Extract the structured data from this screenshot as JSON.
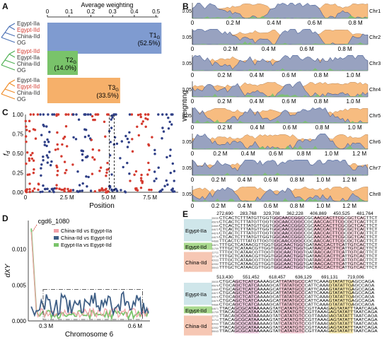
{
  "panels": {
    "a": "A",
    "b": "B",
    "c": "C",
    "d": "D",
    "e": "E"
  },
  "chart_data": [
    {
      "panel": "A",
      "type": "bar",
      "orientation": "horizontal",
      "title": "Average weighting",
      "ticks": [
        "0",
        "0.1",
        "0.2",
        "0.3",
        "0.4",
        "0.5"
      ],
      "xlim": [
        0,
        0.55
      ],
      "categories": [
        "T1",
        "T2",
        "T3"
      ],
      "values": [
        0.525,
        0.14,
        0.335
      ],
      "bar_labels": [
        [
          "T1",
          "G",
          "(52.5%)"
        ],
        [
          "T2",
          "G",
          "(14.0%)"
        ],
        [
          "T3",
          "G",
          "(33.5%)"
        ]
      ],
      "colors": [
        "#7f9bd0",
        "#79c36a",
        "#f6b06a"
      ],
      "trees": [
        {
          "taxa": [
            "Egypt-IIa",
            "Egypt-IId",
            "China-IId",
            "OG"
          ],
          "taxa_colors": [
            "#333333",
            "#d43a2f",
            "#333333",
            "#333333"
          ],
          "branch_color": "#4a6fb5"
        },
        {
          "taxa": [
            "Egypt-IId",
            "Egypt-IIa",
            "China-IId",
            "OG"
          ],
          "taxa_colors": [
            "#d43a2f",
            "#333333",
            "#333333",
            "#333333"
          ],
          "branch_color": "#4caf50"
        },
        {
          "taxa": [
            "Egypt-IIa",
            "Egypt-IId",
            "China-IId",
            "OG"
          ],
          "taxa_colors": [
            "#333333",
            "#d43a2f",
            "#333333",
            "#333333"
          ],
          "branch_color": "#f08a24"
        }
      ]
    },
    {
      "panel": "B",
      "type": "area",
      "ylabel": "Weighting",
      "ytick": "0.05",
      "series_colors": [
        "#7f9bd0",
        "#f6b06a",
        "#79c36a"
      ],
      "chromosomes": [
        {
          "name": "Chr1",
          "ticks": [
            "0",
            "0.2 M",
            "0.4 M",
            "0.6 M",
            "0.8 M"
          ],
          "length": 0.86
        },
        {
          "name": "Chr2",
          "ticks": [
            "0",
            "0.2 M",
            "0.4 M",
            "0.6 M",
            "0.8 M"
          ],
          "length": 0.92
        },
        {
          "name": "Chr3",
          "ticks": [
            "0",
            "0.2 M",
            "0.4 M",
            "0.6 M",
            "0.8 M",
            "1.0 M"
          ],
          "length": 1.09
        },
        {
          "name": "Chr4",
          "ticks": [
            "0",
            "0.2 M",
            "0.4 M",
            "0.6 M",
            "0.8 M",
            "1.0 M"
          ],
          "length": 1.09
        },
        {
          "name": "Chr5",
          "ticks": [
            "0",
            "0.2 M",
            "0.4 M",
            "0.6 M",
            "0.8 M",
            "1.0 M"
          ],
          "length": 1.08
        },
        {
          "name": "Chr6",
          "ticks": [
            "0",
            "0.2 M",
            "0.4 M",
            "0.6 M",
            "0.8 M",
            "1.0 M",
            "1.2 M"
          ],
          "length": 1.26
        },
        {
          "name": "Chr7",
          "ticks": [
            "0",
            "0.2 M",
            "0.4 M",
            "0.6 M",
            "0.8 M",
            "1.0 M",
            "1.2 M"
          ],
          "length": 1.34
        },
        {
          "name": "Chr8",
          "ticks": [
            "0",
            "0.2 M",
            "0.4 M",
            "0.6 M",
            "0.8 M",
            "1.0 M",
            "1.2 M"
          ],
          "length": 1.34
        }
      ]
    },
    {
      "panel": "C",
      "type": "scatter",
      "xlabel": "Position",
      "ylabel": "fd",
      "xticks": [
        "0",
        "2.5 M",
        "5.0 M",
        "7.5 M"
      ],
      "xlim": [
        0,
        9.2
      ],
      "yticks": [
        "0.00",
        "0.25",
        "0.50",
        "0.75",
        "1.00"
      ],
      "ylim": [
        0,
        1.0
      ],
      "colors": [
        "#d43a2f",
        "#2f3f86"
      ]
    },
    {
      "panel": "D",
      "type": "line",
      "xlabel": "Chromosome 6",
      "ylabel": "dXY",
      "xticks": [
        "0.3 M",
        "0.6 M"
      ],
      "yticks": [
        "0.000",
        "0.005",
        "0.010"
      ],
      "ylim": [
        0,
        0.014
      ],
      "annotation": "cgd6_1080",
      "legend": [
        "China-IId vs Egypt-IIa",
        "China-IId vs Egypt-IId",
        "Egypt-IIa vs Egypt-IId"
      ],
      "colors": [
        "#f2a0a8",
        "#3f5f86",
        "#79c36a"
      ]
    }
  ],
  "alignment": {
    "top_positions": [
      "272,690",
      "283,768",
      "329,708",
      "362,228",
      "406,869",
      "450,525",
      "481,764"
    ],
    "bottom_positions": [
      "513,430",
      "551,452",
      "618,457",
      "636,129",
      "691,131",
      "719,006"
    ],
    "groups": [
      {
        "label": "Egypt-IIa",
        "color": "#cfe6ea"
      },
      {
        "label": "Egypt-IId",
        "color": "#a9d98e"
      },
      {
        "label": "China-IId",
        "color": "#f6c7b4"
      }
    ],
    "rows_top": [
      "CTCACTCTTTATGTTGGTGGCAACCGGCCGCAACCACTTCGCGCTCACTTCT",
      "CTCACTCTTTATGTTGGTGGCAACCGGCCGCAACCACTTCGCGCTCACTTCT",
      "CTCACTCTTTATGTTGGTGGCAACCGGCCGCAACCACTTCGCGCTCACTTCT",
      "CTCACTCTTTATGTTGGTGGCAACCGGCCGCAACCACTTCGCGCTCACTTCT",
      "CTCACTCTTTATGTTGGTGGCAACCGGCCGCAACCACTTCGCGCTCACTTCT",
      "CTCACTCTTTATGTTGGTGGCAACCGGCCGCAACCACTTCGCGCTCACTTCT",
      "TTCACTCTTTATGTTGGTGGCAACCGGCCGCAACCACTTCGCGCTCACTTCT",
      "TTTGCTCATAACGTTGGTGGCAACTGGTGATAACCACTTCATTGTCACTTCT",
      "TTTGCTCATAACGTTGGTGGCAACTGGTGATAACCACTTCATTGTCACTTCT",
      "TTTGCTCATAACGTTGGTGGCAACTGGTGATAACCACTTCATTGTCACTTCT",
      "TTTGCTCATAACGTTGGTGGCAACTGGTGATAACCACTTCATTGTCACTTCT",
      "TTTGCTCATAACGTTGGTGGCAACTGGTGATAACCACTTCATTGTCACTTCT",
      "TTTGCTCATAACGTTGGTGGCAACTGGTGATAACCACTTCATTGTCACTTCT",
      "TTTGCTCATAACGTTGGTGGCAACTGGTGATAACCACTTCATTGTCACTTCT"
    ],
    "rows_bottom": [
      "CTGCAGCTCATCAAAAGCATTATATGCCCATTCAAAGTATATTGAGCCAGA",
      "CTGCAGCTCATCAAAAGCATTATATGCCCATTCAAAGTATATTGAGCCAGA",
      "CTGCAGCTCATCAAAAGCATTATATGCCCATTCAAAGTATATTGAGCCAGA",
      "CTGCAGCTCATCAAAAGCATTATATGCCCATTCAAAGTATATTGAGCCAGA",
      "CTGCAGCTCATCAAAAGCATTATATGCCCATTCAAAGTATATTGAGCCAGA",
      "CTGCAGCTCATCAAAAGCATTATATGCCCATTCAAAGTATATTGAGCCAGA",
      "CTGCAGCTCATCAAAAGCATTATATGCCCATTCAAAGTATATTGAGCCAGA",
      "TTACAGCGCATAAAAAGTATCATATGTCCGTTAAAGAGTATATTTAATCAGA",
      "TTACAGCGCATAAAAAGTATCATATGTCCGTTAAAGAGTATATTTAATCAGA",
      "TTACAGCGCATAAAAAGTATCATATGTCCGTTAAAGAGTATATTTAATCAGA",
      "TTACAGCGCATAAAAAGTATCATATGTCCGTTAAAGAGTATATTTAATCAGA",
      "TTACAGCGCATAAAAAGTATCATATGTCCGTTAAAGAGTATATTTAATCAGA",
      "TTACAGCGCATAAAAAGTATCATATGTCCGTTAAAGAGTATATTTAATCAGA",
      "TTACAGCGCATAAAAAGTATCATATGTCCGTTAAAGAGTATATTTAATCAGA"
    ],
    "ids_top": [
      "35030",
      "45678",
      "44669",
      "44672",
      "44676",
      "44679",
      "44686",
      "44671",
      "11709",
      "11711",
      "11714",
      "42033",
      "42052",
      "35043"
    ],
    "ids_bottom": [
      "35030",
      "45678",
      "44669",
      "44672",
      "44676",
      "44679",
      "44686",
      "44671",
      "11709",
      "11711",
      "11714",
      "42033",
      "42052",
      "35043"
    ]
  }
}
